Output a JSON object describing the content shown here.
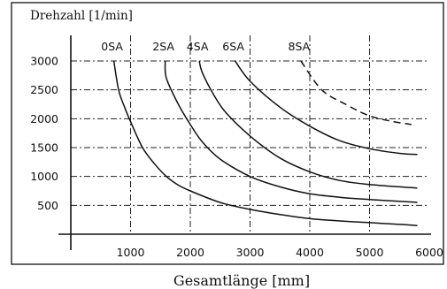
{
  "chart_data": {
    "type": "line",
    "title": "",
    "ylabel": "Drehzahl [1/min]",
    "xlabel": "Gesamtlänge [mm]",
    "xlim": [
      0,
      6000
    ],
    "ylim": [
      0,
      3000
    ],
    "x_ticks": [
      1000,
      2000,
      3000,
      4000,
      5000,
      6000
    ],
    "y_ticks": [
      500,
      1000,
      1500,
      2000,
      2500,
      3000
    ],
    "grid": true,
    "series": [
      {
        "name": "0SA",
        "style": "solid",
        "x": [
          720,
          800,
          900,
          1000,
          1200,
          1400,
          1600,
          1800,
          2000,
          2500,
          3000,
          3500,
          4000,
          4500,
          5000,
          5500,
          5800
        ],
        "y": [
          3000,
          2500,
          2200,
          1950,
          1500,
          1220,
          1000,
          850,
          750,
          550,
          430,
          340,
          270,
          230,
          200,
          170,
          150
        ]
      },
      {
        "name": "2SA",
        "style": "solid",
        "x": [
          1580,
          1600,
          1800,
          2000,
          2200,
          2500,
          3000,
          3500,
          4000,
          4500,
          5000,
          5500,
          5800
        ],
        "y": [
          3000,
          2700,
          2250,
          1900,
          1600,
          1300,
          1000,
          820,
          700,
          640,
          600,
          570,
          550
        ]
      },
      {
        "name": "4SA",
        "style": "solid",
        "x": [
          2150,
          2200,
          2400,
          2600,
          3000,
          3500,
          4000,
          4500,
          5000,
          5500,
          5800
        ],
        "y": [
          3000,
          2800,
          2400,
          2100,
          1700,
          1320,
          1080,
          930,
          860,
          820,
          800
        ]
      },
      {
        "name": "6SA",
        "style": "solid",
        "x": [
          2750,
          3000,
          3500,
          4000,
          4500,
          5000,
          5500,
          5800
        ],
        "y": [
          3000,
          2650,
          2200,
          1870,
          1620,
          1480,
          1400,
          1380
        ]
      },
      {
        "name": "8SA",
        "style": "dashed",
        "x": [
          3850,
          4200,
          4600,
          5000,
          5400,
          5700
        ],
        "y": [
          3000,
          2500,
          2250,
          2050,
          1950,
          1900
        ]
      }
    ]
  }
}
